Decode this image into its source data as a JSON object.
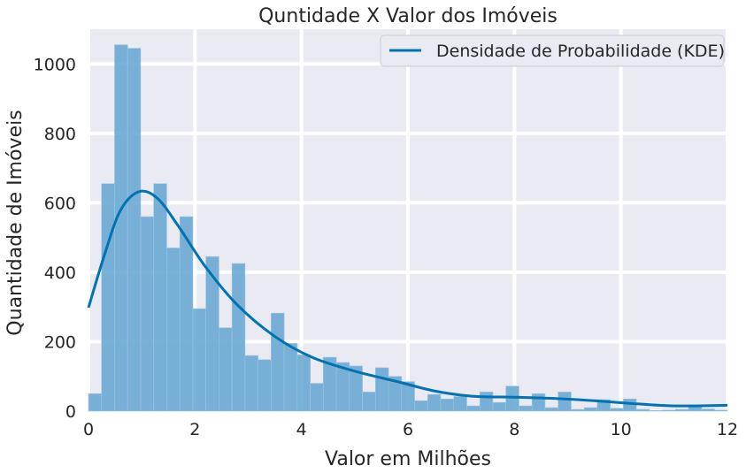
{
  "chart_data": {
    "type": "histogram",
    "title": "Quntidade X Valor dos Imóveis",
    "xlabel": "Valor em Milhões",
    "ylabel": "Quantidade de Imóveis",
    "xlim": [
      0,
      12
    ],
    "ylim": [
      0,
      1100
    ],
    "xticks": [
      "0",
      "2",
      "4",
      "6",
      "8",
      "10",
      "12"
    ],
    "yticks": [
      "0",
      "200",
      "400",
      "600",
      "800",
      "1000"
    ],
    "grid": true,
    "legend_position": "top-right",
    "bar_color": "#6aa8d3",
    "line_color": "#0173b2",
    "bin_width": 0.245,
    "bin_start": 0,
    "counts": [
      50,
      655,
      1055,
      1045,
      560,
      655,
      470,
      560,
      295,
      445,
      240,
      425,
      160,
      148,
      282,
      195,
      162,
      80,
      155,
      140,
      130,
      55,
      125,
      100,
      85,
      30,
      48,
      35,
      42,
      15,
      55,
      25,
      72,
      15,
      50,
      10,
      55,
      5,
      10,
      33,
      8,
      35,
      5,
      2,
      3,
      5,
      18,
      6,
      3
    ],
    "series": [
      {
        "name": "Densidade de Probabilidade (KDE)",
        "x": [
          0,
          0.3,
          0.6,
          0.95,
          1.3,
          1.7,
          2.2,
          2.8,
          3.5,
          4.2,
          5.0,
          5.8,
          6.5,
          7.2,
          8.0,
          8.8,
          9.5,
          10.2,
          11.0,
          12.0
        ],
        "y": [
          298,
          450,
          578,
          632,
          612,
          530,
          415,
          305,
          215,
          155,
          115,
          85,
          58,
          43,
          40,
          36,
          30,
          22,
          15,
          17
        ]
      }
    ]
  }
}
